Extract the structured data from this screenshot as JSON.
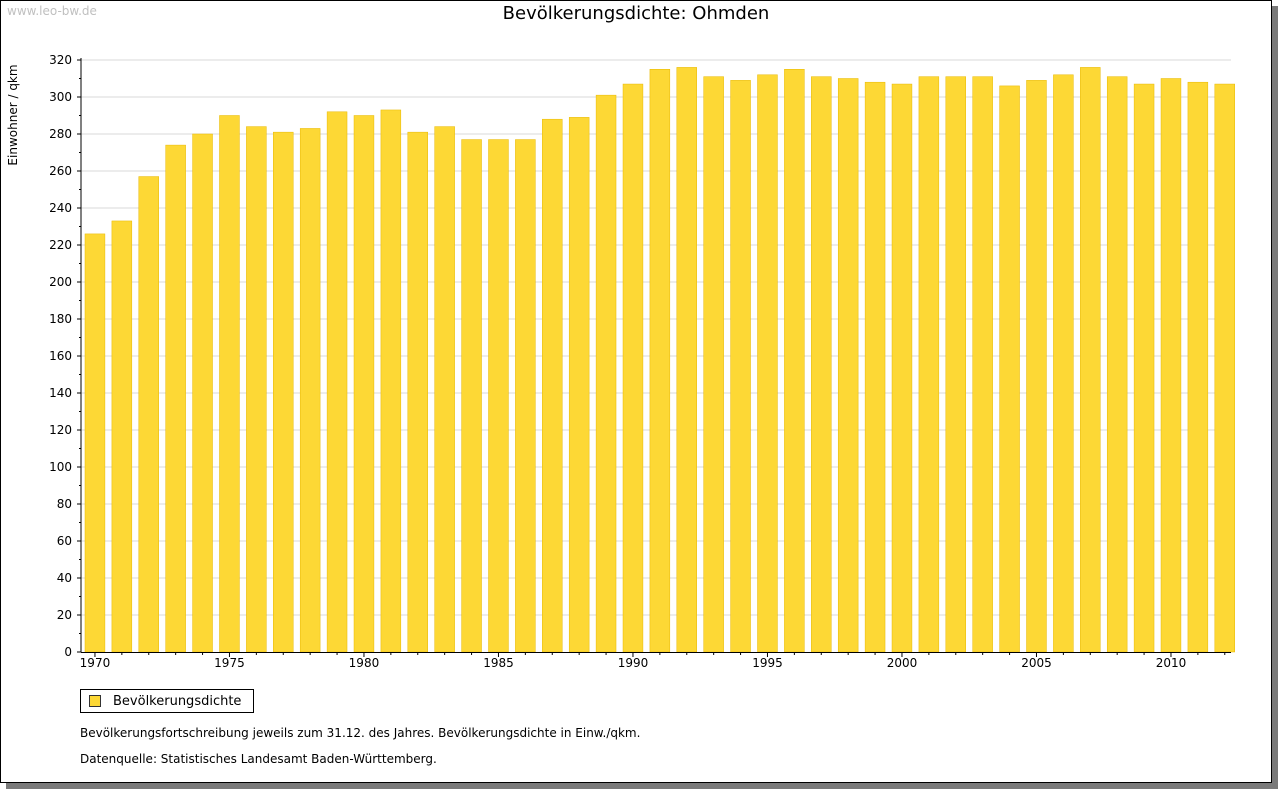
{
  "watermark": "www.leo-bw.de",
  "colors": {
    "bar": "#FDD835",
    "bar_edge": "#E8B800",
    "grid": "#d8d8d8"
  },
  "chart_data": {
    "type": "bar",
    "title": "Bevölkerungsdichte: Ohmden",
    "xlabel": "",
    "ylabel": "Einwohner / qkm",
    "ylim": [
      0,
      320
    ],
    "yticks": [
      0,
      20,
      40,
      60,
      80,
      100,
      120,
      140,
      160,
      180,
      200,
      220,
      240,
      260,
      280,
      300,
      320
    ],
    "xticks": [
      "1970",
      "1975",
      "1980",
      "1985",
      "1990",
      "1995",
      "2000",
      "2005",
      "2010"
    ],
    "grid": true,
    "legend_position": "bottom-left",
    "categories": [
      1970,
      1971,
      1972,
      1973,
      1974,
      1975,
      1976,
      1977,
      1978,
      1979,
      1980,
      1981,
      1982,
      1983,
      1984,
      1985,
      1986,
      1987,
      1988,
      1989,
      1990,
      1991,
      1992,
      1993,
      1994,
      1995,
      1996,
      1997,
      1998,
      1999,
      2000,
      2001,
      2002,
      2003,
      2004,
      2005,
      2006,
      2007,
      2008,
      2009,
      2010,
      2011,
      2012
    ],
    "series": [
      {
        "name": "Bevölkerungsdichte",
        "values": [
          226,
          233,
          257,
          274,
          280,
          290,
          284,
          281,
          283,
          292,
          290,
          293,
          281,
          284,
          277,
          277,
          277,
          288,
          289,
          301,
          307,
          315,
          316,
          311,
          309,
          312,
          315,
          311,
          310,
          308,
          307,
          311,
          311,
          311,
          306,
          309,
          312,
          316,
          311,
          307,
          310,
          308,
          307
        ]
      }
    ]
  },
  "notes": {
    "line1": "Bevölkerungsfortschreibung jeweils zum 31.12. des Jahres. Bevölkerungsdichte in Einw./qkm.",
    "line2": "Datenquelle: Statistisches Landesamt Baden-Württemberg."
  }
}
